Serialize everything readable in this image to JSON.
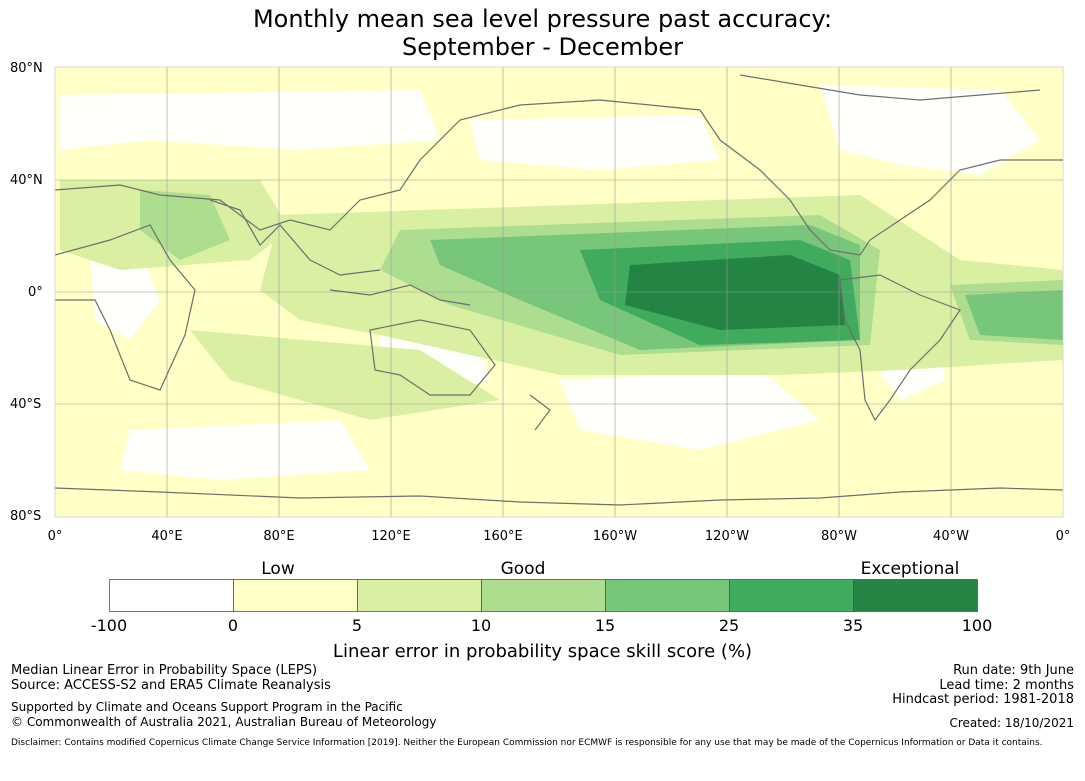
{
  "title": {
    "line1": "Monthly mean sea level pressure past accuracy:",
    "line2": "September - December"
  },
  "map": {
    "lat_labels": [
      "80°N",
      "40°N",
      "0°",
      "40°S",
      "80°S"
    ],
    "lon_labels": [
      "0°",
      "40°E",
      "80°E",
      "120°E",
      "160°E",
      "160°W",
      "120°W",
      "80°W",
      "40°W",
      "0°"
    ],
    "background_color": "#ffffc6",
    "coast_color": "#6e6e6e"
  },
  "colorbar": {
    "categories": [
      "Low",
      "Good",
      "Exceptional"
    ],
    "ticks": [
      "-100",
      "0",
      "5",
      "10",
      "15",
      "25",
      "35",
      "100"
    ],
    "colors": [
      "#ffffff",
      "#ffffc8",
      "#d9f0a3",
      "#addd8e",
      "#78c679",
      "#41ab5d",
      "#238443"
    ],
    "label": "Linear error in probability space skill score (%)"
  },
  "footer": {
    "left": [
      "Median Linear Error in Probability Space (LEPS)",
      "Source: ACCESS-S2 and ERA5 Climate Reanalysis",
      "Supported by Climate and Oceans Support Program in the Pacific",
      "© Commonwealth of Australia 2021, Australian Bureau of Meteorology"
    ],
    "right": [
      "Run date: 9th June",
      "Lead time: 2 months",
      "Hindcast period: 1981-2018",
      "Created: 18/10/2021"
    ],
    "disclaimer": "Disclaimer: Contains modified Copernicus Climate Change Service Information [2019]. Neither the European Commission nor ECMWF is responsible for any use that may be made of the Copernicus Information or Data it contains."
  }
}
